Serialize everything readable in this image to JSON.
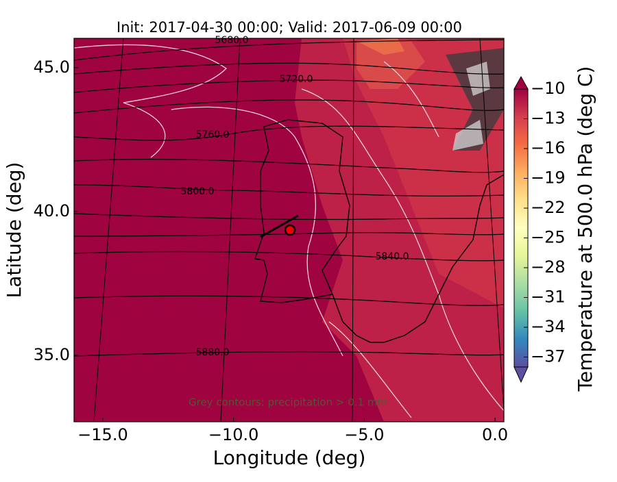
{
  "title": "Init: 2017-04-30 00:00; Valid: 2017-06-09 00:00",
  "x_axis": {
    "label": "Longitude (deg)",
    "lim": [
      -16.1,
      0.34
    ],
    "ticks": [
      {
        "value": -15,
        "label": "−15.0"
      },
      {
        "value": -10,
        "label": "−10.0"
      },
      {
        "value": -5,
        "label": "−5.0"
      },
      {
        "value": 0,
        "label": "0.0"
      }
    ]
  },
  "y_axis": {
    "label": "Latitude (deg)",
    "lim": [
      32.69,
      46.02
    ],
    "ticks": [
      {
        "value": 35,
        "label": "35.0"
      },
      {
        "value": 40,
        "label": "40.0"
      },
      {
        "value": 45,
        "label": "45.0"
      }
    ]
  },
  "contour_labels": [
    "5680.0",
    "5720.0",
    "5760.0",
    "5800.0",
    "5840.0",
    "5880.0"
  ],
  "annotation": "Grey contours: precipitation > 0.1 mm",
  "colorbar": {
    "label": "Temperature at 500.0 hPa (deg C)",
    "lim": [
      -38,
      -10
    ],
    "ticks": [
      {
        "value": -10,
        "label": "−10"
      },
      {
        "value": -13,
        "label": "−13"
      },
      {
        "value": -16,
        "label": "−16"
      },
      {
        "value": -19,
        "label": "−19"
      },
      {
        "value": -22,
        "label": "−22"
      },
      {
        "value": -25,
        "label": "−25"
      },
      {
        "value": -28,
        "label": "−28"
      },
      {
        "value": -31,
        "label": "−31"
      },
      {
        "value": -34,
        "label": "−34"
      },
      {
        "value": -37,
        "label": "−37"
      }
    ]
  }
}
